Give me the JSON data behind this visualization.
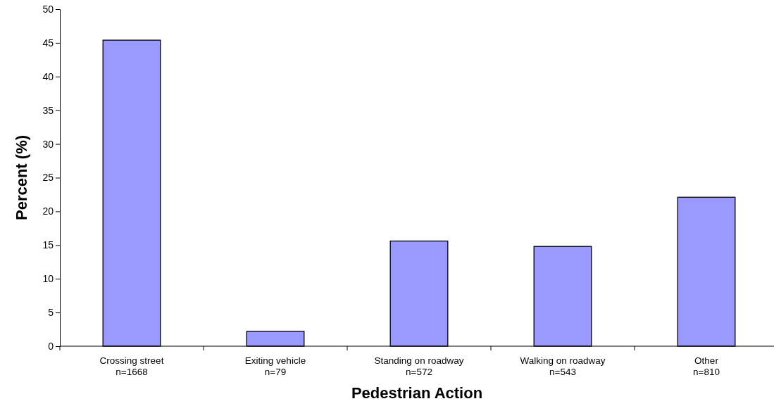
{
  "chart_data": {
    "type": "bar",
    "xlabel": "Pedestrian Action",
    "ylabel": "Percent (%)",
    "categories": [
      "Crossing street\nn=1668",
      "Exiting vehicle\nn=79",
      "Standing on roadway\nn=572",
      "Walking on roadway\nn=543",
      "Other\nn=810"
    ],
    "values": [
      45.4,
      2.2,
      15.6,
      14.8,
      22.1
    ],
    "color": "#9999ff",
    "ylim": [
      0,
      50
    ],
    "yticks": [
      0,
      5,
      10,
      15,
      20,
      25,
      30,
      35,
      40,
      45,
      50
    ]
  }
}
